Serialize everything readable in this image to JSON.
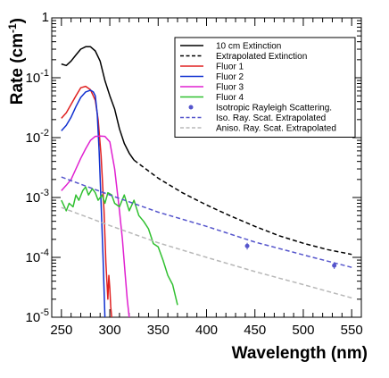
{
  "chart_data": {
    "type": "line",
    "xlabel": "Wavelength (nm)",
    "ylabel": {
      "main": "Rate (cm",
      "sup": "-1",
      "end": ")"
    },
    "xlim": [
      240,
      560
    ],
    "ylim": [
      1e-05,
      1
    ],
    "yscale": "log",
    "xticks": [
      250,
      300,
      350,
      400,
      450,
      500,
      550
    ],
    "yticks": [
      {
        "value": 1e-05,
        "base": "10",
        "exp": "-5"
      },
      {
        "value": 0.0001,
        "base": "10",
        "exp": "-4"
      },
      {
        "value": 0.001,
        "base": "10",
        "exp": "-3"
      },
      {
        "value": 0.01,
        "base": "10",
        "exp": "-2"
      },
      {
        "value": 0.1,
        "base": "10",
        "exp": "-1"
      },
      {
        "value": 1,
        "base": "1",
        "exp": ""
      }
    ],
    "legend_position": "top-right",
    "series": [
      {
        "key": "ext10",
        "name": "10 cm Extinction",
        "color": "#000000",
        "dash": "solid",
        "kind": "line",
        "x": [
          250,
          255,
          260,
          265,
          270,
          275,
          280,
          285,
          290,
          295,
          300,
          305,
          310,
          315,
          320,
          325
        ],
        "y": [
          0.17,
          0.16,
          0.19,
          0.24,
          0.3,
          0.33,
          0.33,
          0.28,
          0.19,
          0.09,
          0.05,
          0.03,
          0.014,
          0.008,
          0.0055,
          0.0042
        ]
      },
      {
        "key": "extrap",
        "name": "Extrapolated Extinction",
        "color": "#000000",
        "dash": "dash",
        "kind": "line",
        "x": [
          325,
          350,
          375,
          400,
          425,
          450,
          475,
          500,
          525,
          550
        ],
        "y": [
          0.0042,
          0.0021,
          0.0012,
          0.00075,
          0.00049,
          0.00033,
          0.00023,
          0.000172,
          0.000135,
          0.000112
        ]
      },
      {
        "key": "f1",
        "name": "Fluor 1",
        "color": "#e02020",
        "dash": "solid",
        "kind": "line",
        "x": [
          250,
          255,
          260,
          265,
          270,
          275,
          280,
          285,
          288,
          291,
          294,
          296,
          297,
          298,
          299,
          300,
          301,
          302
        ],
        "y": [
          0.021,
          0.026,
          0.036,
          0.05,
          0.068,
          0.072,
          0.063,
          0.042,
          0.02,
          0.005,
          0.0006,
          8e-05,
          4e-05,
          2e-05,
          5e-05,
          3e-05,
          1.5e-05,
          1e-05
        ]
      },
      {
        "key": "f2",
        "name": "Fluor 2",
        "color": "#1030d0",
        "dash": "solid",
        "kind": "line",
        "x": [
          250,
          255,
          260,
          265,
          270,
          275,
          280,
          283,
          285,
          287,
          289,
          291,
          293,
          294,
          295
        ],
        "y": [
          0.013,
          0.016,
          0.022,
          0.033,
          0.047,
          0.058,
          0.062,
          0.058,
          0.05,
          0.025,
          0.006,
          0.0008,
          0.0001,
          3e-05,
          1e-05
        ]
      },
      {
        "key": "f3",
        "name": "Fluor 3",
        "color": "#e020d0",
        "dash": "solid",
        "kind": "line",
        "x": [
          250,
          255,
          260,
          265,
          270,
          275,
          280,
          285,
          290,
          295,
          300,
          305,
          310,
          313,
          316,
          318,
          320
        ],
        "y": [
          0.0013,
          0.0016,
          0.002,
          0.003,
          0.0045,
          0.0065,
          0.009,
          0.0105,
          0.0106,
          0.0105,
          0.0085,
          0.003,
          0.0006,
          0.0002,
          5e-05,
          2e-05,
          1e-05
        ]
      },
      {
        "key": "f4",
        "name": "Fluor 4",
        "color": "#30c030",
        "dash": "solid",
        "kind": "line",
        "x": [
          250,
          255,
          258,
          262,
          265,
          268,
          272,
          275,
          278,
          282,
          285,
          288,
          292,
          295,
          298,
          302,
          305,
          310,
          315,
          320,
          325,
          330,
          335,
          340,
          345,
          350,
          355,
          360,
          365,
          370
        ],
        "y": [
          0.0009,
          0.0006,
          0.0008,
          0.0007,
          0.0011,
          0.0009,
          0.0013,
          0.0015,
          0.0011,
          0.0014,
          0.0012,
          0.0009,
          0.0011,
          0.0008,
          0.0012,
          0.0011,
          0.0008,
          0.0007,
          0.0011,
          0.0006,
          0.0009,
          0.0005,
          0.0004,
          0.0003,
          0.00017,
          0.00015,
          9e-05,
          5e-05,
          3.5e-05,
          1.6e-05
        ]
      },
      {
        "key": "iso_pts",
        "name": "Isotropic Rayleigh Scattering.",
        "color": "#5555cc",
        "kind": "points",
        "x": [
          442,
          532
        ],
        "y": [
          0.000155,
          7.3e-05
        ],
        "err": [
          2e-05,
          9e-06
        ]
      },
      {
        "key": "iso_ext",
        "name": "Iso. Ray. Scat. Extrapolated",
        "color": "#5555cc",
        "dash": "dash",
        "kind": "line",
        "x": [
          250,
          300,
          350,
          400,
          450,
          500,
          550
        ],
        "y": [
          0.0022,
          0.0011,
          0.00057,
          0.00033,
          0.00018,
          0.00011,
          6.8e-05
        ]
      },
      {
        "key": "aniso_ext",
        "name": "Aniso. Ray. Scat. Extrapolated",
        "color": "#b8b8b8",
        "dash": "dash",
        "kind": "line",
        "x": [
          250,
          300,
          350,
          400,
          450,
          500,
          550
        ],
        "y": [
          0.00068,
          0.00034,
          0.000175,
          0.0001,
          5.8e-05,
          3.5e-05,
          2.1e-05
        ]
      }
    ]
  }
}
